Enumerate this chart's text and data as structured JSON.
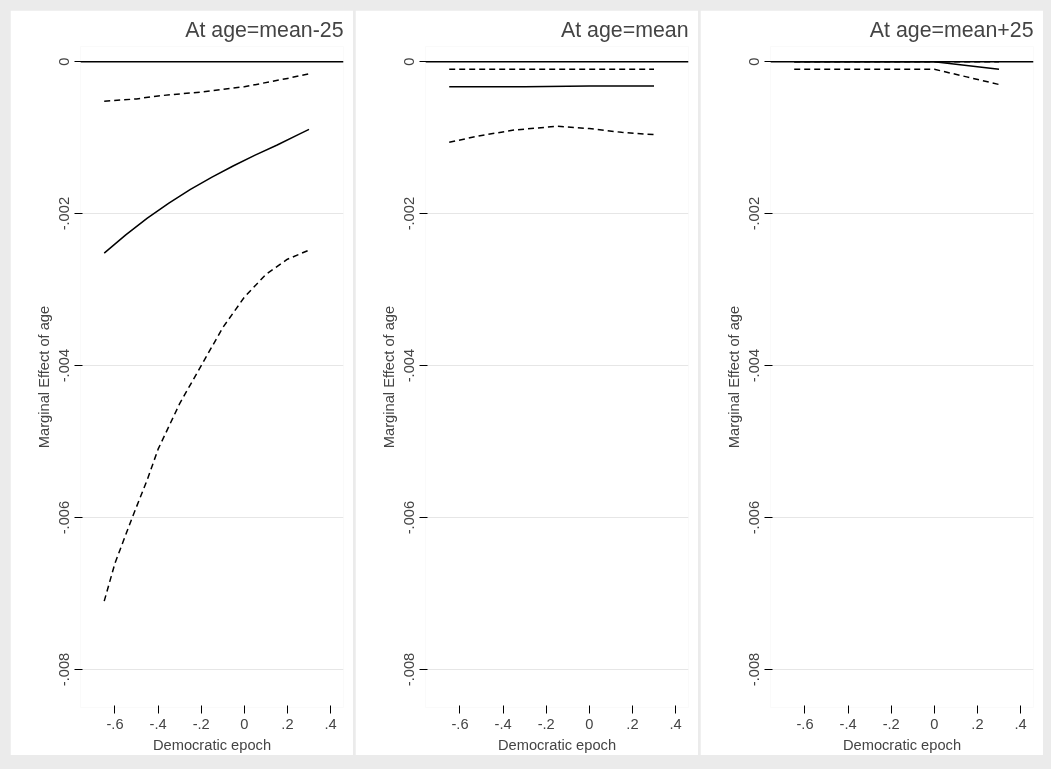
{
  "chart_data": [
    {
      "type": "line",
      "title": "At age=mean-25",
      "xlabel": "Democratic epoch",
      "ylabel": "Marginal Effect of age",
      "xlim": [
        -0.76,
        0.46
      ],
      "ylim": [
        -0.0085,
        0.0002
      ],
      "xticks": [
        {
          "value": -0.6,
          "label": "-.6"
        },
        {
          "value": -0.4,
          "label": "-.4"
        },
        {
          "value": -0.2,
          "label": "-.2"
        },
        0,
        {
          "value": 0.2,
          "label": ".2"
        },
        {
          "value": 0.4,
          "label": ".4"
        }
      ],
      "yticks": [
        {
          "value": -0.008,
          "label": "-.008"
        },
        {
          "value": -0.006,
          "label": "-.006"
        },
        {
          "value": -0.004,
          "label": "-.004"
        },
        {
          "value": -0.002,
          "label": "-.002"
        },
        0
      ],
      "grid": "y",
      "ref_lines": [
        {
          "axis": "y",
          "value": 0,
          "color": "#000000",
          "line_style": "solid"
        }
      ],
      "series": [
        {
          "color": "#000000",
          "line_style": "dashed",
          "x": [
            -0.65,
            -0.5,
            -0.4,
            -0.2,
            0,
            0.2,
            0.3
          ],
          "values": [
            -0.00052,
            -0.00049,
            -0.00045,
            -0.0004,
            -0.00033,
            -0.00022,
            -0.00016
          ]
        },
        {
          "color": "#000000",
          "line_style": "solid",
          "x": [
            -0.65,
            -0.55,
            -0.45,
            -0.35,
            -0.25,
            -0.15,
            -0.05,
            0.05,
            0.15,
            0.25,
            0.3
          ],
          "values": [
            -0.00252,
            -0.00228,
            -0.00206,
            -0.00186,
            -0.00168,
            -0.00152,
            -0.00137,
            -0.00123,
            -0.0011,
            -0.00096,
            -0.00089
          ]
        },
        {
          "color": "#000000",
          "line_style": "dashed",
          "x": [
            -0.65,
            -0.6,
            -0.52,
            -0.45,
            -0.4,
            -0.3,
            -0.2,
            -0.1,
            0,
            0.1,
            0.2,
            0.3
          ],
          "values": [
            -0.0071,
            -0.0066,
            -0.006,
            -0.0055,
            -0.0051,
            -0.0045,
            -0.004,
            -0.0035,
            -0.0031,
            -0.0028,
            -0.0026,
            -0.00248
          ]
        }
      ]
    },
    {
      "type": "line",
      "title": "At age=mean",
      "xlabel": "Democratic epoch",
      "ylabel": "Marginal Effect of age",
      "xlim": [
        -0.76,
        0.46
      ],
      "ylim": [
        -0.0085,
        0.0002
      ],
      "xticks": [
        {
          "value": -0.6,
          "label": "-.6"
        },
        {
          "value": -0.4,
          "label": "-.4"
        },
        {
          "value": -0.2,
          "label": "-.2"
        },
        0,
        {
          "value": 0.2,
          "label": ".2"
        },
        {
          "value": 0.4,
          "label": ".4"
        }
      ],
      "yticks": [
        {
          "value": -0.008,
          "label": "-.008"
        },
        {
          "value": -0.006,
          "label": "-.006"
        },
        {
          "value": -0.004,
          "label": "-.004"
        },
        {
          "value": -0.002,
          "label": "-.002"
        },
        0
      ],
      "grid": "y",
      "ref_lines": [
        {
          "axis": "y",
          "value": 0,
          "color": "#000000",
          "line_style": "solid"
        }
      ],
      "series": [
        {
          "color": "#000000",
          "line_style": "dashed",
          "x": [
            -0.65,
            -0.4,
            -0.15,
            0.1,
            0.3
          ],
          "values": [
            -0.0001,
            -0.0001,
            -0.0001,
            -0.0001,
            -0.0001
          ]
        },
        {
          "color": "#000000",
          "line_style": "solid",
          "x": [
            -0.65,
            -0.3,
            0,
            0.3
          ],
          "values": [
            -0.00033,
            -0.00033,
            -0.00032,
            -0.00032
          ]
        },
        {
          "color": "#000000",
          "line_style": "dashed",
          "x": [
            -0.65,
            -0.5,
            -0.35,
            -0.15,
            0,
            0.15,
            0.3
          ],
          "values": [
            -0.00106,
            -0.00097,
            -0.0009,
            -0.00085,
            -0.00088,
            -0.00093,
            -0.00096
          ]
        }
      ]
    },
    {
      "type": "line",
      "title": "At age=mean+25",
      "xlabel": "Democratic epoch",
      "ylabel": "Marginal Effect of age",
      "xlim": [
        -0.76,
        0.46
      ],
      "ylim": [
        -0.0085,
        0.0002
      ],
      "xticks": [
        {
          "value": -0.6,
          "label": "-.6"
        },
        {
          "value": -0.4,
          "label": "-.4"
        },
        {
          "value": -0.2,
          "label": "-.2"
        },
        0,
        {
          "value": 0.2,
          "label": ".2"
        },
        {
          "value": 0.4,
          "label": ".4"
        }
      ],
      "yticks": [
        {
          "value": -0.008,
          "label": "-.008"
        },
        {
          "value": -0.006,
          "label": "-.006"
        },
        {
          "value": -0.004,
          "label": "-.004"
        },
        {
          "value": -0.002,
          "label": "-.002"
        },
        0
      ],
      "grid": "y",
      "ref_lines": [
        {
          "axis": "y",
          "value": 0,
          "color": "#000000",
          "line_style": "solid"
        }
      ],
      "series": [
        {
          "color": "#000000",
          "line_style": "dashed",
          "x": [
            -0.65,
            0.3
          ],
          "values": [
            0,
            0
          ]
        },
        {
          "color": "#000000",
          "line_style": "solid",
          "x": [
            -0.65,
            0,
            0.3
          ],
          "values": [
            0,
            0,
            -0.0001
          ]
        },
        {
          "color": "#000000",
          "line_style": "dashed",
          "x": [
            -0.65,
            -0.2,
            0,
            0.15,
            0.3
          ],
          "values": [
            -0.0001,
            -0.0001,
            -0.0001,
            -0.0002,
            -0.0003
          ]
        }
      ]
    }
  ]
}
